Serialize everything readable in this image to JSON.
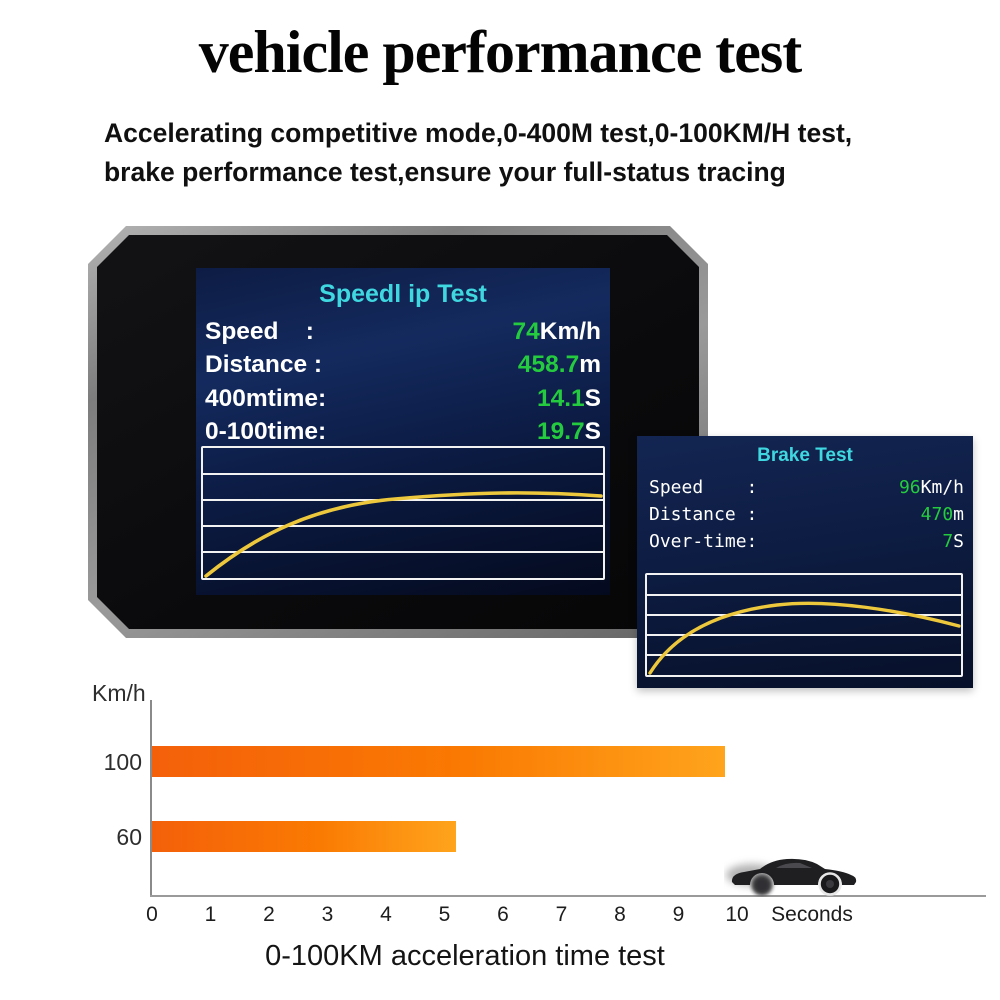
{
  "page": {
    "title": "vehicle performance test",
    "subtitle_line1": "Accelerating competitive mode,0-400M test,0-100KM/H test,",
    "subtitle_line2": "brake performance test,ensure your full-status tracing"
  },
  "hud_screen": {
    "title": "Speedl ip Test",
    "rows": [
      {
        "label": "Speed    :",
        "value": "74",
        "unit": "Km/h"
      },
      {
        "label": "Distance :",
        "value": "458.7",
        "unit": "m"
      },
      {
        "label": "400mtime:",
        "value": "14.1",
        "unit": "S"
      },
      {
        "label": "0-100time:",
        "value": "19.7",
        "unit": "S"
      }
    ]
  },
  "brake_screen": {
    "title": "Brake Test",
    "rows": [
      {
        "label": "Speed    :",
        "value": "96",
        "unit": "Km/h"
      },
      {
        "label": "Distance :",
        "value": "470",
        "unit": "m"
      },
      {
        "label": "Over-time:",
        "value": "7",
        "unit": "S"
      }
    ]
  },
  "chart_data": {
    "type": "bar",
    "orientation": "horizontal",
    "title": "0-100KM acceleration time test",
    "category_axis_label": "Km/h",
    "value_axis_label": "Seconds",
    "categories": [
      "100",
      "60"
    ],
    "values": [
      9.8,
      5.2
    ],
    "x_ticks": [
      "0",
      "1",
      "2",
      "3",
      "4",
      "5",
      "6",
      "7",
      "8",
      "9",
      "10"
    ],
    "xlim": [
      0,
      10
    ],
    "grid": false,
    "bar_color_start": "#f4600a",
    "bar_color_end": "#ffa41c"
  },
  "colors": {
    "screen_title": "#3fd7e0",
    "screen_value_green": "#25cb3e",
    "screen_text": "#ffffff",
    "curve_yellow": "#edc83c",
    "axis_gray": "#8a8a8a"
  }
}
